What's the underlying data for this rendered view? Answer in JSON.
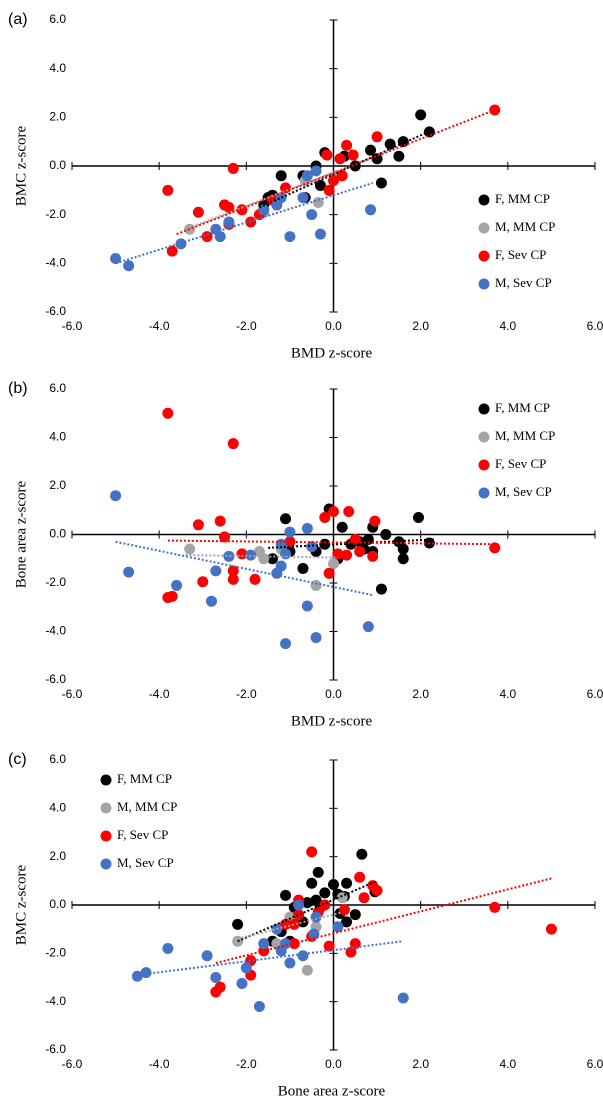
{
  "chart_data": [
    {
      "type": "scatter",
      "panel_label": "(a)",
      "x_label": "BMD z-score",
      "y_label": "BMC z-score",
      "legend": "right",
      "xlim": [
        -6,
        6
      ],
      "ylim": [
        -6,
        6
      ],
      "xticks": [
        {
          "value": -6,
          "label": "-6.0"
        },
        {
          "value": -4,
          "label": "-4.0"
        },
        {
          "value": -2,
          "label": "-2.0"
        },
        {
          "value": 0,
          "label": "0.0"
        },
        {
          "value": 2,
          "label": "2.0"
        },
        {
          "value": 4,
          "label": "4.0"
        },
        {
          "value": 6,
          "label": "6.0"
        }
      ],
      "yticks": [
        {
          "value": -6,
          "label": "-6.0"
        },
        {
          "value": -4,
          "label": "-4.0"
        },
        {
          "value": -2,
          "label": "-2.0"
        },
        {
          "value": 0,
          "label": "0.0"
        },
        {
          "value": 2,
          "label": "2.0"
        },
        {
          "value": 4,
          "label": "4.0"
        },
        {
          "value": 6,
          "label": "6.0"
        }
      ],
      "series": [
        {
          "name": "F, MM CP",
          "color": "#000000",
          "x": [
            2.0,
            2.2,
            1.6,
            1.3,
            1.5,
            0.85,
            1.0,
            0.25,
            -0.2,
            0.5,
            -0.4,
            -0.3,
            1.1,
            -0.7,
            -0.65,
            -1.4,
            -1.6,
            -1.2,
            -1.5
          ],
          "y": [
            2.1,
            1.4,
            1.0,
            0.9,
            0.4,
            0.65,
            0.3,
            0.4,
            0.55,
            0.0,
            0.0,
            -0.8,
            -0.7,
            -0.4,
            -1.3,
            -1.2,
            -1.6,
            -0.4,
            -1.3
          ],
          "trendline_x": [
            -1.7,
            2.3
          ],
          "trendline_y": [
            -1.7,
            1.5
          ]
        },
        {
          "name": "M, MM CP",
          "color": "#a5a5a5",
          "x": [
            -3.3,
            -0.65,
            -0.35,
            -1.3,
            -1.6,
            0.05
          ],
          "y": [
            -2.6,
            -0.6,
            -1.5,
            -1.6,
            -1.9,
            -0.4
          ],
          "trendline_x": [
            -3.4,
            0.1
          ],
          "trendline_y": [
            -2.6,
            -0.2
          ]
        },
        {
          "name": "F, Sev CP",
          "color": "#ff0000",
          "x": [
            3.7,
            1.0,
            0.3,
            0.45,
            0.15,
            -0.15,
            0.0,
            0.2,
            -0.1,
            -2.3,
            -3.8,
            -3.1,
            -2.5,
            -2.1,
            -1.7,
            -2.4,
            -1.9,
            -2.9,
            -3.7,
            -1.1,
            -1.4,
            -2.4
          ],
          "y": [
            2.3,
            1.2,
            0.85,
            0.45,
            0.3,
            0.45,
            -0.6,
            -0.4,
            -1.0,
            -0.1,
            -1.0,
            -1.9,
            -1.6,
            -1.8,
            -2.0,
            -1.7,
            -2.3,
            -2.9,
            -3.5,
            -0.9,
            -1.4,
            -2.4
          ],
          "trendline_x": [
            -3.6,
            3.7
          ],
          "trendline_y": [
            -2.8,
            2.3
          ]
        },
        {
          "name": "M, Sev CP",
          "color": "#4472c4",
          "x": [
            -5.0,
            -4.7,
            -3.5,
            -2.7,
            -2.6,
            -2.4,
            -1.6,
            -1.3,
            -1.2,
            -1.0,
            -0.3,
            -0.5,
            0.85,
            -0.7,
            -0.4,
            -0.6
          ],
          "y": [
            -3.8,
            -4.1,
            -3.2,
            -2.6,
            -2.9,
            -2.3,
            -1.8,
            -1.6,
            -1.3,
            -2.9,
            -2.8,
            -2.0,
            -1.8,
            -1.3,
            -0.2,
            -0.4
          ],
          "trendline_x": [
            -5.0,
            0.9
          ],
          "trendline_y": [
            -4.0,
            -0.7
          ]
        }
      ]
    },
    {
      "type": "scatter",
      "panel_label": "(b)",
      "x_label": "BMD z-score",
      "y_label": "Bone area z-score",
      "legend": "upper right",
      "xlim": [
        -6,
        6
      ],
      "ylim": [
        -6,
        6
      ],
      "xticks": [
        {
          "value": -6,
          "label": "-6.0"
        },
        {
          "value": -4,
          "label": "-4.0"
        },
        {
          "value": -2,
          "label": "-2.0"
        },
        {
          "value": 0,
          "label": "0.0"
        },
        {
          "value": 2,
          "label": "2.0"
        },
        {
          "value": 4,
          "label": "4.0"
        },
        {
          "value": 6,
          "label": "6.0"
        }
      ],
      "yticks": [
        {
          "value": -6,
          "label": "-6.0"
        },
        {
          "value": -4,
          "label": "-4.0"
        },
        {
          "value": -2,
          "label": "-2.0"
        },
        {
          "value": 0,
          "label": "0.0"
        },
        {
          "value": 2,
          "label": "2.0"
        },
        {
          "value": 4,
          "label": "4.0"
        },
        {
          "value": 6,
          "label": "6.0"
        }
      ],
      "series": [
        {
          "name": "F, MM CP",
          "color": "#000000",
          "x": [
            -0.1,
            0.2,
            0.9,
            1.2,
            1.95,
            2.2,
            1.5,
            1.6,
            1.6,
            1.1,
            0.8,
            0.6,
            0.7,
            0.9,
            0.4,
            -0.4,
            -0.7,
            -1.1,
            -1.4,
            -1.0,
            -0.2,
            0.1
          ],
          "y": [
            1.05,
            0.3,
            0.3,
            0.0,
            0.7,
            -0.35,
            -0.3,
            -0.6,
            -1.0,
            -2.25,
            -0.2,
            -0.3,
            -0.6,
            -0.7,
            -0.4,
            -0.7,
            -1.4,
            0.65,
            -1.0,
            -0.7,
            -0.4,
            -1.0
          ],
          "trendline_x": [
            -1.5,
            2.3
          ],
          "trendline_y": [
            -0.55,
            -0.2
          ]
        },
        {
          "name": "M, MM CP",
          "color": "#a5a5a5",
          "x": [
            -3.3,
            -1.7,
            -1.6,
            -0.4,
            0.0,
            -1.2
          ],
          "y": [
            -0.6,
            -0.7,
            -1.0,
            -2.1,
            -1.2,
            -0.6
          ],
          "trendline_x": [
            -3.4,
            0.1
          ],
          "trendline_y": [
            -0.85,
            -0.95
          ]
        },
        {
          "name": "F, Sev CP",
          "color": "#ff0000",
          "x": [
            -3.8,
            -2.3,
            -3.1,
            -2.6,
            -2.5,
            -2.1,
            -2.3,
            -2.3,
            -1.8,
            -3.0,
            -3.8,
            -3.7,
            -0.2,
            0.0,
            0.35,
            -0.1,
            0.3,
            0.5,
            0.6,
            0.1,
            0.9,
            0.95,
            3.7,
            -1.0
          ],
          "y": [
            5.0,
            3.75,
            0.4,
            0.55,
            -0.1,
            -0.8,
            -1.5,
            -1.85,
            -1.85,
            -1.95,
            -2.6,
            -2.55,
            0.7,
            0.95,
            0.95,
            -1.6,
            -0.85,
            -0.2,
            -0.7,
            -0.8,
            -0.9,
            0.55,
            -0.55,
            -0.3
          ],
          "trendline_x": [
            -3.8,
            3.7
          ],
          "trendline_y": [
            -0.25,
            -0.4
          ]
        },
        {
          "name": "M, Sev CP",
          "color": "#4472c4",
          "x": [
            -5.0,
            -4.7,
            -3.6,
            -2.8,
            -2.7,
            -2.4,
            -1.9,
            -1.3,
            -1.1,
            -1.0,
            -1.2,
            -0.6,
            -0.6,
            -0.4,
            -1.1,
            0.8,
            -1.2,
            -0.5
          ],
          "y": [
            1.6,
            -1.55,
            -2.1,
            -2.75,
            -1.5,
            -0.9,
            -0.85,
            -1.6,
            -0.8,
            0.1,
            -0.4,
            0.25,
            -2.95,
            -4.25,
            -4.5,
            -3.8,
            -1.3,
            -0.5
          ],
          "trendline_x": [
            -5.0,
            0.9
          ],
          "trendline_y": [
            -0.3,
            -2.5
          ]
        }
      ]
    },
    {
      "type": "scatter",
      "panel_label": "(c)",
      "x_label": "Bone area z-score",
      "y_label": "BMC z-score",
      "legend": "upper left",
      "xlim": [
        -6,
        6
      ],
      "ylim": [
        -6,
        6
      ],
      "xticks": [
        {
          "value": -6,
          "label": "-6.0"
        },
        {
          "value": -4,
          "label": "-4.0"
        },
        {
          "value": -2,
          "label": "-2.0"
        },
        {
          "value": 0,
          "label": "0.0"
        },
        {
          "value": 2,
          "label": "2.0"
        },
        {
          "value": 4,
          "label": "4.0"
        },
        {
          "value": 6,
          "label": "6.0"
        }
      ],
      "yticks": [
        {
          "value": -6,
          "label": "-6.0"
        },
        {
          "value": -4,
          "label": "-4.0"
        },
        {
          "value": -2,
          "label": "-2.0"
        },
        {
          "value": 0,
          "label": "0.0"
        },
        {
          "value": 2,
          "label": "2.0"
        },
        {
          "value": 4,
          "label": "4.0"
        },
        {
          "value": 6,
          "label": "6.0"
        }
      ],
      "series": [
        {
          "name": "F, MM CP",
          "color": "#000000",
          "x": [
            0.65,
            -0.35,
            0.0,
            0.3,
            0.1,
            -0.2,
            -0.5,
            -1.1,
            -0.4,
            0.25,
            0.95,
            0.5,
            -0.6,
            -0.9,
            -0.3,
            -2.2,
            -1.2,
            -0.7,
            0.3,
            -1.4,
            -1.0,
            0.15
          ],
          "y": [
            2.1,
            1.35,
            0.85,
            0.9,
            0.45,
            0.5,
            0.9,
            0.4,
            0.2,
            0.35,
            0.55,
            -0.4,
            0.1,
            -0.1,
            -0.1,
            -0.8,
            -1.1,
            -0.7,
            -0.7,
            -1.5,
            -1.5,
            -0.35
          ],
          "trendline_x": [
            -2.2,
            1.0
          ],
          "trendline_y": [
            -1.5,
            1.0
          ]
        },
        {
          "name": "M, MM CP",
          "color": "#a5a5a5",
          "x": [
            -0.6,
            -2.2,
            -1.0,
            -1.3,
            -0.4,
            0.2
          ],
          "y": [
            -2.7,
            -1.5,
            -0.5,
            -1.6,
            -0.9,
            0.3
          ],
          "trendline_x": [
            -2.2,
            0.2
          ],
          "trendline_y": [
            -1.4,
            -0.3
          ]
        },
        {
          "name": "F, Sev CP",
          "color": "#ff0000",
          "x": [
            -0.5,
            3.7,
            5.0,
            0.9,
            0.6,
            1.0,
            -0.8,
            -0.9,
            -0.8,
            -0.35,
            0.25,
            -0.1,
            0.5,
            0.4,
            0.7,
            -0.2,
            -1.1,
            -2.6,
            -2.7,
            -1.9,
            -1.9,
            -1.6,
            -0.9,
            -0.5
          ],
          "y": [
            2.2,
            -0.1,
            -1.0,
            0.8,
            1.15,
            0.6,
            -0.4,
            -0.8,
            0.2,
            -0.3,
            -0.2,
            -1.7,
            -1.6,
            -1.95,
            0.3,
            0.0,
            -0.8,
            -3.4,
            -3.6,
            -2.3,
            -2.9,
            -1.9,
            -1.6,
            -1.3
          ],
          "trendline_x": [
            -2.7,
            5.0
          ],
          "trendline_y": [
            -2.4,
            1.1
          ]
        },
        {
          "name": "M, Sev CP",
          "color": "#4472c4",
          "x": [
            -4.5,
            -4.3,
            -3.8,
            -2.9,
            -2.7,
            -2.1,
            -2.0,
            -1.7,
            -1.6,
            -1.2,
            -1.0,
            -1.1,
            -0.7,
            -0.45,
            -0.4,
            0.1,
            1.6,
            -0.8,
            -1.3
          ],
          "y": [
            -2.95,
            -2.8,
            -1.8,
            -2.1,
            -3.0,
            -3.25,
            -2.6,
            -4.2,
            -1.6,
            -1.9,
            -2.4,
            -1.6,
            -2.1,
            -1.2,
            -0.5,
            -0.9,
            -3.85,
            0.0,
            -1.0
          ],
          "trendline_x": [
            -4.5,
            1.6
          ],
          "trendline_y": [
            -2.9,
            -1.5
          ]
        }
      ]
    }
  ]
}
